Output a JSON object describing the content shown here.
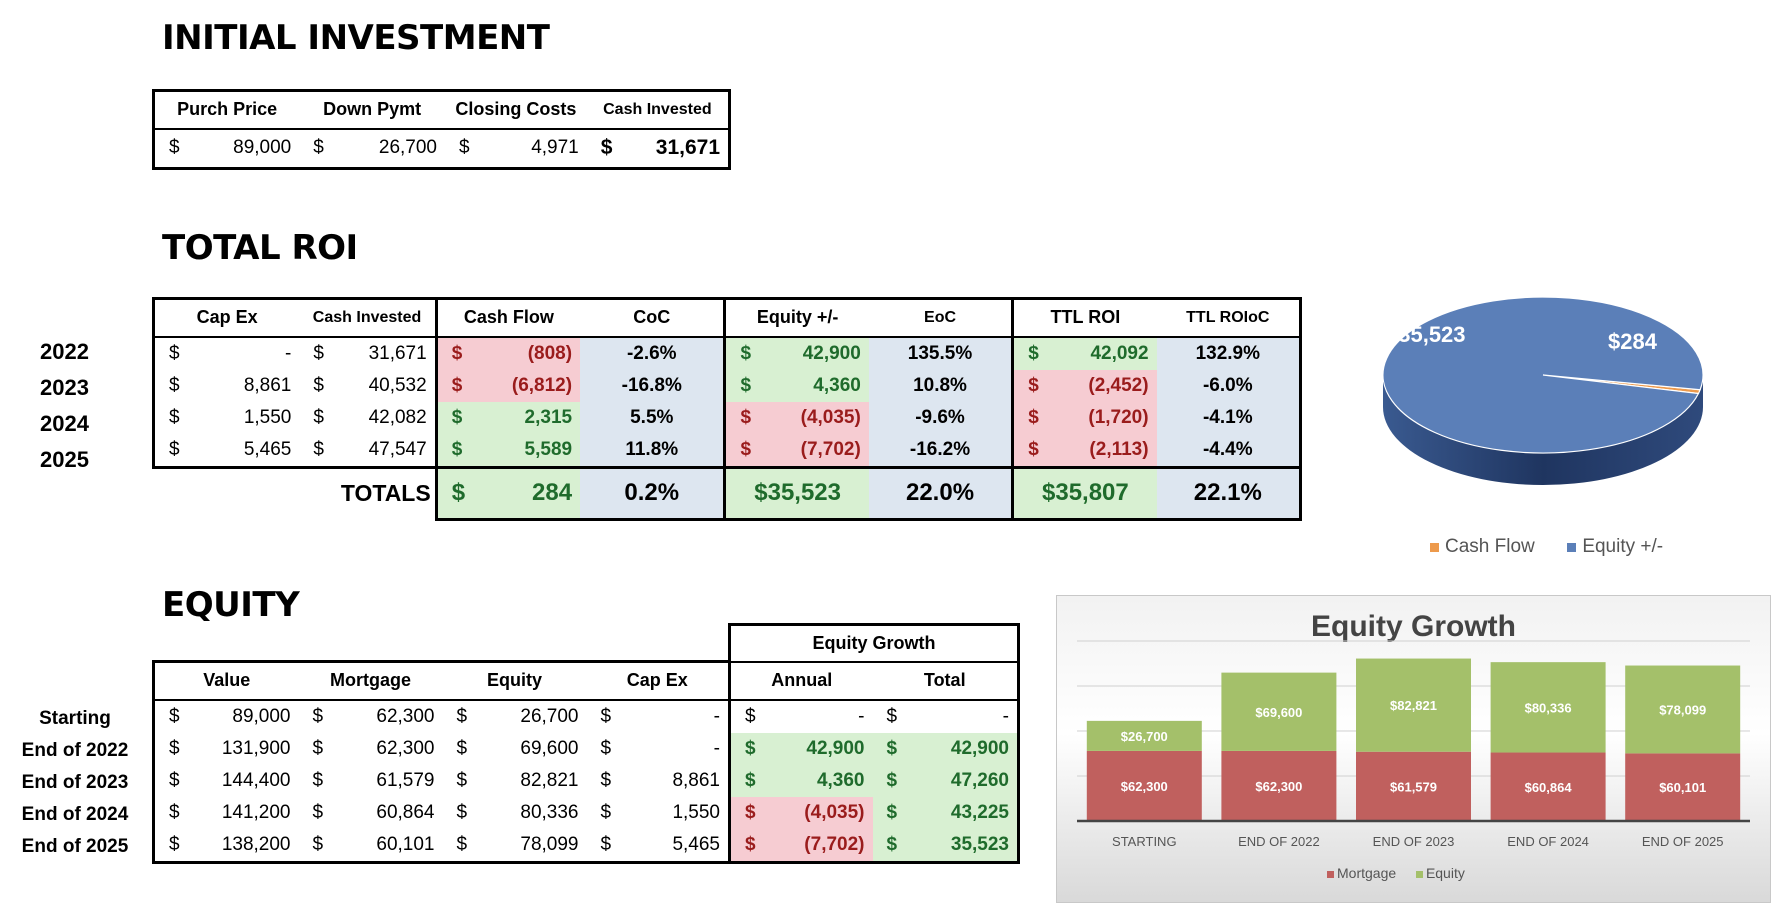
{
  "initial": {
    "title": "INITIAL INVESTMENT",
    "headers": [
      "Purch Price",
      "Down Pymt",
      "Closing Costs",
      "Cash Invested"
    ],
    "values": [
      "89,000",
      "26,700",
      "4,971",
      "31,671"
    ]
  },
  "roi": {
    "title": "TOTAL ROI",
    "headers": [
      "Cap Ex",
      "Cash Invested",
      "Cash Flow",
      "CoC",
      "Equity +/-",
      "EoC",
      "TTL ROI",
      "TTL ROIoC"
    ],
    "years": [
      "2022",
      "2023",
      "2024",
      "2025"
    ],
    "rows": [
      {
        "capex": "-",
        "cash_invested": "31,671",
        "cash_flow": "(808)",
        "coc": "-2.6%",
        "equity": "42,900",
        "eoc": "135.5%",
        "ttl": "42,092",
        "ttl_oc": "132.9%"
      },
      {
        "capex": "8,861",
        "cash_invested": "40,532",
        "cash_flow": "(6,812)",
        "coc": "-16.8%",
        "equity": "4,360",
        "eoc": "10.8%",
        "ttl": "(2,452)",
        "ttl_oc": "-6.0%"
      },
      {
        "capex": "1,550",
        "cash_invested": "42,082",
        "cash_flow": "2,315",
        "coc": "5.5%",
        "equity": "(4,035)",
        "eoc": "-9.6%",
        "ttl": "(1,720)",
        "ttl_oc": "-4.1%"
      },
      {
        "capex": "5,465",
        "cash_invested": "47,547",
        "cash_flow": "5,589",
        "coc": "11.8%",
        "equity": "(7,702)",
        "eoc": "-16.2%",
        "ttl": "(2,113)",
        "ttl_oc": "-4.4%"
      }
    ],
    "totals_label": "TOTALS",
    "totals": {
      "cash_flow": "284",
      "coc": "0.2%",
      "equity": "$35,523",
      "eoc": "22.0%",
      "ttl": "$35,807",
      "ttl_oc": "22.1%"
    }
  },
  "equity": {
    "title": "EQUITY",
    "group_header": "Equity Growth",
    "headers": [
      "Value",
      "Mortgage",
      "Equity",
      "Cap Ex",
      "Annual",
      "Total"
    ],
    "row_labels": [
      "Starting",
      "End of 2022",
      "End of 2023",
      "End of 2024",
      "End of 2025"
    ],
    "rows": [
      {
        "value": "89,000",
        "mortgage": "62,300",
        "equity": "26,700",
        "capex": "-",
        "annual": "-",
        "total": "-"
      },
      {
        "value": "131,900",
        "mortgage": "62,300",
        "equity": "69,600",
        "capex": "-",
        "annual": "42,900",
        "total": "42,900"
      },
      {
        "value": "144,400",
        "mortgage": "61,579",
        "equity": "82,821",
        "capex": "8,861",
        "annual": "4,360",
        "total": "47,260"
      },
      {
        "value": "141,200",
        "mortgage": "60,864",
        "equity": "80,336",
        "capex": "1,550",
        "annual": "(4,035)",
        "total": "43,225"
      },
      {
        "value": "138,200",
        "mortgage": "60,101",
        "equity": "78,099",
        "capex": "5,465",
        "annual": "(7,702)",
        "total": "35,523"
      }
    ]
  },
  "currency_symbol": "$",
  "chart_data": [
    {
      "type": "pie",
      "title": "",
      "categories": [
        "Cash Flow",
        "Equity +/-"
      ],
      "values": [
        284,
        35523
      ],
      "data_labels": [
        "$284",
        "$35,523"
      ],
      "colors": [
        "#ed9a4c",
        "#5b7fb8"
      ],
      "legend": "bottom"
    },
    {
      "type": "bar",
      "stacked": true,
      "title": "Equity Growth",
      "categories": [
        "STARTING",
        "END OF 2022",
        "END OF 2023",
        "END OF 2024",
        "END OF 2025"
      ],
      "series": [
        {
          "name": "Mortgage",
          "values": [
            62300,
            62300,
            61579,
            60864,
            60101
          ],
          "labels": [
            "$62,300",
            "$62,300",
            "$61,579",
            "$60,864",
            "$60,101"
          ],
          "color": "#c0605e"
        },
        {
          "name": "Equity",
          "values": [
            26700,
            69600,
            82821,
            80336,
            78099
          ],
          "labels": [
            "$26,700",
            "$69,600",
            "$82,821",
            "$80,336",
            "$78,099"
          ],
          "color": "#a4c06a"
        }
      ],
      "ylim": [
        0,
        160000
      ],
      "legend": "bottom"
    }
  ]
}
